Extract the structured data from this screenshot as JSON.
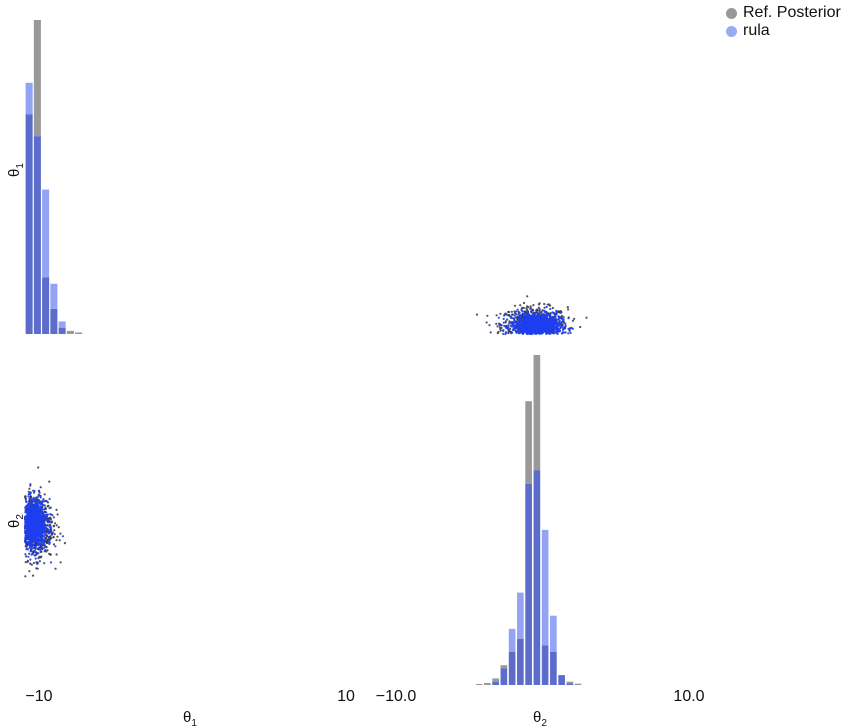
{
  "legend": [
    {
      "label": "Ref. Posterior",
      "color": "#999999"
    },
    {
      "label": "rula",
      "color": "#99aaf5"
    }
  ],
  "colors": {
    "ref_fill": "#7f7f7f",
    "rula_fill": "#6f86f2",
    "overlap": "#5b6ccb",
    "ref_points": "#333344",
    "rula_points": "#1e3ff0"
  },
  "chart_data": [
    {
      "type": "histogram",
      "panel": "theta1-marginal",
      "ylabel": "θ1",
      "x_range": [
        -10,
        10
      ],
      "bin_edges": [
        -10.0,
        -9.5,
        -9.0,
        -8.5,
        -8.0,
        -7.5,
        -7.0,
        -6.5,
        -6.0
      ],
      "series": [
        {
          "name": "Ref. Posterior",
          "values": [
            0.7,
            1.0,
            0.18,
            0.08,
            0.02,
            0.01,
            0.005,
            0.0
          ]
        },
        {
          "name": "rula",
          "values": [
            0.8,
            0.63,
            0.46,
            0.16,
            0.04,
            0.0,
            0.0,
            0.0
          ]
        }
      ]
    },
    {
      "type": "scatter",
      "panel": "theta1-vs-theta2",
      "x_range": [
        -10,
        10
      ],
      "y_range": [
        -10.0,
        10.0
      ],
      "series": [
        {
          "name": "Ref. Posterior",
          "center": [
            -0.4,
            -9.4
          ],
          "spread": [
            1.0,
            0.55
          ],
          "count": 650
        },
        {
          "name": "rula",
          "center": [
            -0.3,
            -9.5
          ],
          "spread": [
            0.75,
            0.42
          ],
          "count": 1100
        }
      ]
    },
    {
      "type": "scatter",
      "panel": "theta2-vs-theta1",
      "x_range": [
        -10,
        10
      ],
      "y_range": [
        -10.0,
        10.0
      ],
      "series": [
        {
          "name": "Ref. Posterior",
          "center": [
            -9.4,
            -0.4
          ],
          "spread": [
            0.55,
            1.0
          ],
          "count": 650
        },
        {
          "name": "rula",
          "center": [
            -9.5,
            -0.3
          ],
          "spread": [
            0.42,
            0.75
          ],
          "count": 1100
        }
      ]
    },
    {
      "type": "histogram",
      "panel": "theta2-marginal",
      "x_range": [
        -10.0,
        10.0
      ],
      "bin_edges": [
        -4.0,
        -3.5,
        -3.0,
        -2.5,
        -2.0,
        -1.5,
        -1.0,
        -0.5,
        0.0,
        0.5,
        1.0,
        1.5,
        2.0,
        2.5,
        3.0,
        3.5
      ],
      "series": [
        {
          "name": "Ref. Posterior",
          "values": [
            0.003,
            0.006,
            0.02,
            0.06,
            0.1,
            0.14,
            0.86,
            1.0,
            0.12,
            0.1,
            0.03,
            0.01,
            0.004,
            0.0,
            0.0
          ]
        },
        {
          "name": "rula",
          "values": [
            0.0,
            0.0,
            0.01,
            0.05,
            0.17,
            0.28,
            0.61,
            0.65,
            0.47,
            0.21,
            0.03,
            0.005,
            0.0,
            0.0,
            0.0
          ]
        }
      ]
    }
  ],
  "axes": {
    "x_ticks_theta1": [
      "−10",
      "10"
    ],
    "x_ticks_theta2": [
      "−10.0",
      "10.0"
    ],
    "xlabel_theta1": "θ1",
    "xlabel_theta2": "θ2",
    "ylabel_theta1": "θ1",
    "ylabel_theta2": "θ2"
  }
}
